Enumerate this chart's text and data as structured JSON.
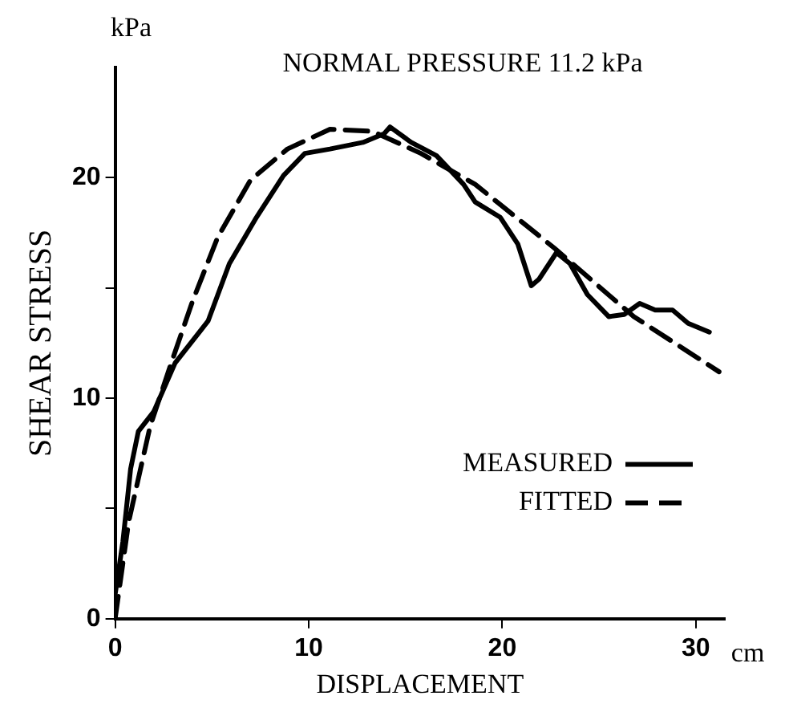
{
  "chart_data": {
    "type": "line",
    "title": "NORMAL PRESSURE 11.2 kPa",
    "xlabel": "DISPLACEMENT",
    "ylabel": "SHEAR STRESS",
    "annotations": [
      "kPa",
      "cm"
    ],
    "xlim": [
      0,
      31.5
    ],
    "xticks": [
      0,
      10,
      20,
      30
    ],
    "ylim": [
      0,
      25
    ],
    "yticks": [
      0,
      {
        "value": 5,
        "label": null
      },
      10,
      {
        "value": 15,
        "label": null
      },
      20
    ],
    "grid": false,
    "legend": "right",
    "marker": "none",
    "series": [
      {
        "name": "MEASURED",
        "color": "#000000",
        "line_style": "solid",
        "x": [
          0,
          0,
          0.4,
          0.8,
          1.2,
          2.0,
          3.1,
          4.8,
          5.9,
          7.3,
          8.7,
          9.8,
          11.1,
          12.8,
          13.9,
          14.2,
          15.3,
          16.6,
          18.0,
          18.6,
          19.9,
          20.8,
          21.5,
          21.9,
          22.8,
          23.5,
          24.4,
          25.5,
          26.3,
          27.1,
          27.9,
          28.8,
          29.6,
          30.7
        ],
        "values": [
          0,
          1.1,
          3.5,
          6.8,
          8.5,
          9.4,
          11.6,
          13.5,
          16.1,
          18.2,
          20.1,
          21.1,
          21.3,
          21.6,
          22.0,
          22.3,
          21.6,
          21.0,
          19.7,
          18.9,
          18.2,
          17.0,
          15.1,
          15.4,
          16.6,
          16.1,
          14.7,
          13.7,
          13.8,
          14.3,
          14.0,
          14.0,
          13.4,
          13.0
        ]
      },
      {
        "name": "FITTED",
        "color": "#000000",
        "line_style": "dashed",
        "x": [
          0,
          0.7,
          1.8,
          2.9,
          4.0,
          5.3,
          7.0,
          8.9,
          11.1,
          13.3,
          15.8,
          18.6,
          22.7,
          26.8,
          31.2
        ],
        "values": [
          0,
          4.4,
          8.7,
          11.6,
          14.4,
          17.3,
          19.9,
          21.3,
          22.2,
          22.1,
          21.1,
          19.7,
          16.8,
          13.7,
          11.2
        ]
      }
    ]
  }
}
